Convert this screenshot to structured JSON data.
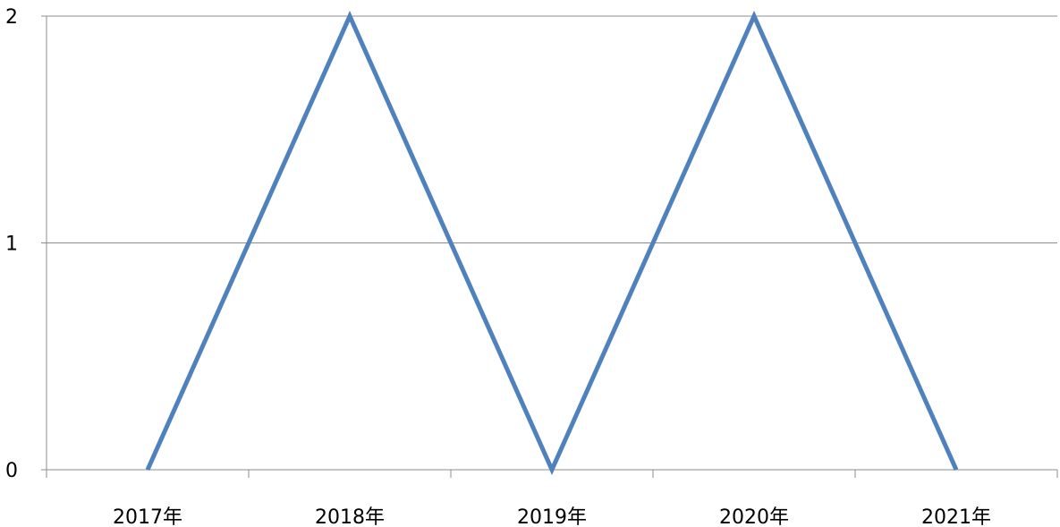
{
  "chart_data": {
    "type": "line",
    "title": "",
    "xlabel": "",
    "ylabel": "",
    "categories": [
      "2017年",
      "2018年",
      "2019年",
      "2020年",
      "2021年"
    ],
    "series": [
      {
        "values": [
          0,
          2,
          0,
          2,
          0
        ],
        "color": "#4f81bd"
      }
    ],
    "ylim": [
      0,
      2
    ],
    "yticks": [
      0,
      1,
      2
    ],
    "grid": true,
    "legend": "none"
  }
}
